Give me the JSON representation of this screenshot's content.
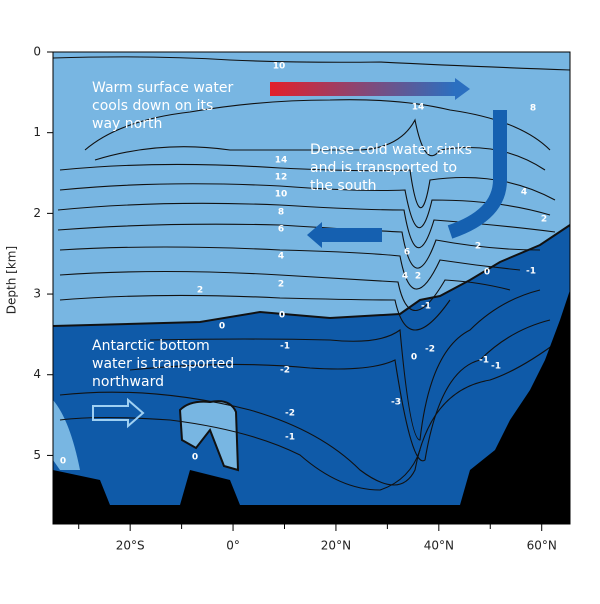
{
  "chart_data": {
    "type": "contour",
    "y_label": "Depth [km]",
    "xlim": [
      -35,
      65.5
    ],
    "xticks": [
      {
        "value": -20,
        "label": "20°S"
      },
      {
        "value": 0,
        "label": "0°"
      },
      {
        "value": 20,
        "label": "20°N"
      },
      {
        "value": 40,
        "label": "40°N"
      },
      {
        "value": 60,
        "label": "60°N"
      }
    ],
    "xminor_ticks": [
      -30,
      -10,
      10,
      30,
      50
    ],
    "ylim": [
      0,
      5.85
    ],
    "yticks": [
      0,
      1,
      2,
      3,
      4,
      5
    ],
    "y_inverted": true,
    "colors": {
      "positive": "#78b6e2",
      "negative": "#0f5aa8",
      "land": "#000000"
    },
    "annotations": [
      [
        "Warm surface water",
        "cools down on its",
        "way north"
      ],
      [
        "Dense cold water sinks",
        "and is transported to",
        "the south"
      ],
      [
        "Antarctic bottom",
        "water is transported",
        "northward"
      ]
    ],
    "contour_labels": [
      10,
      14,
      8,
      14,
      12,
      10,
      8,
      6,
      4,
      2,
      2,
      0,
      0,
      -1,
      -2,
      -2,
      -1,
      6,
      4,
      2,
      -1,
      0,
      -2,
      -3,
      -1,
      -1,
      0,
      -1,
      2,
      2,
      4,
      0,
      0
    ]
  }
}
